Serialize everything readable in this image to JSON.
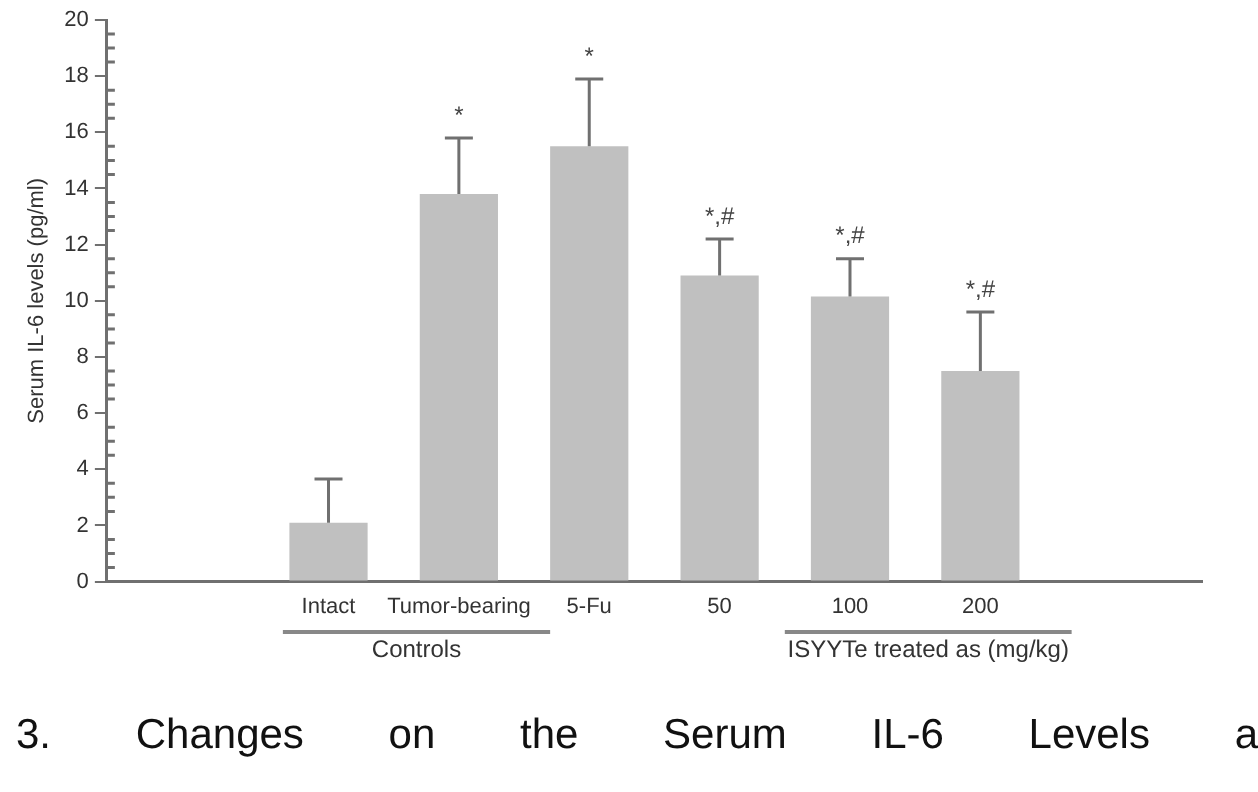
{
  "chart_data": {
    "type": "bar",
    "ylabel": "Serum IL-6 levels (pg/ml)",
    "categories": [
      "Intact",
      "Tumor-bearing",
      "5-Fu",
      "50",
      "100",
      "200"
    ],
    "values": [
      2.1,
      13.8,
      15.5,
      10.9,
      10.15,
      7.5
    ],
    "errors": [
      1.55,
      2.0,
      2.4,
      1.3,
      1.35,
      2.1
    ],
    "color": "#c0c0c0",
    "ylim": [
      0,
      20
    ],
    "yticks": [
      0,
      2,
      4,
      6,
      8,
      10,
      12,
      14,
      16,
      18,
      20
    ],
    "grid": false,
    "annotations": [
      {
        "text": "*",
        "x": "Tumor-bearing",
        "y": 15.8
      },
      {
        "text": "*",
        "x": "5-Fu",
        "y": 17.9
      },
      {
        "text": "*,#",
        "x": "50",
        "y": 12.2
      },
      {
        "text": "*,#",
        "x": "100",
        "y": 11.5
      },
      {
        "text": "*,#",
        "x": "200",
        "y": 9.6
      },
      "Controls",
      "ISYYTe treated as (mg/kg)",
      "3. Changes on the Serum IL-6 Levels a"
    ]
  }
}
